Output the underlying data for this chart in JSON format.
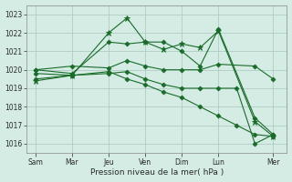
{
  "bg_color": "#d4ece4",
  "grid_color": "#a8c8be",
  "line_color": "#1a6b2a",
  "xlabel": "Pression niveau de la mer( hPa )",
  "ylim": [
    1015.5,
    1023.5
  ],
  "yticks": [
    1016,
    1017,
    1018,
    1019,
    1020,
    1021,
    1022,
    1023
  ],
  "xtick_labels": [
    "Sam",
    "Mar",
    "Jeu",
    "Ven",
    "Dim",
    "Lun",
    "Mer"
  ],
  "xtick_positions": [
    0,
    8,
    16,
    24,
    32,
    40,
    52
  ],
  "xlim": [
    -2,
    55
  ],
  "series": [
    {
      "x": [
        0,
        8,
        16,
        20,
        24,
        28,
        32,
        36,
        40,
        48,
        52
      ],
      "y": [
        1019.4,
        1019.7,
        1022.0,
        1022.8,
        1021.5,
        1021.1,
        1021.4,
        1021.2,
        1022.1,
        1017.2,
        1016.4
      ],
      "marker": "*",
      "markersize": 4.5
    },
    {
      "x": [
        0,
        8,
        16,
        20,
        24,
        28,
        32,
        36,
        40,
        48,
        52
      ],
      "y": [
        1020.0,
        1019.8,
        1021.5,
        1021.4,
        1021.5,
        1021.5,
        1021.0,
        1020.2,
        1022.2,
        1017.4,
        1016.5
      ],
      "marker": "D",
      "markersize": 2.5
    },
    {
      "x": [
        0,
        8,
        16,
        20,
        24,
        28,
        32,
        36,
        40,
        48,
        52
      ],
      "y": [
        1020.0,
        1020.2,
        1020.1,
        1020.5,
        1020.2,
        1020.0,
        1020.0,
        1020.0,
        1020.3,
        1020.2,
        1019.5
      ],
      "marker": "D",
      "markersize": 2.5
    },
    {
      "x": [
        0,
        8,
        16,
        20,
        24,
        28,
        32,
        36,
        40,
        44,
        48,
        52
      ],
      "y": [
        1019.8,
        1019.7,
        1019.8,
        1019.9,
        1019.5,
        1019.2,
        1019.0,
        1019.0,
        1019.0,
        1019.0,
        1016.0,
        1016.5
      ],
      "marker": "D",
      "markersize": 2.5
    },
    {
      "x": [
        0,
        8,
        16,
        20,
        24,
        28,
        32,
        36,
        40,
        44,
        48,
        52
      ],
      "y": [
        1019.5,
        1019.7,
        1019.9,
        1019.5,
        1019.2,
        1018.8,
        1018.5,
        1018.0,
        1017.5,
        1017.0,
        1016.5,
        1016.4
      ],
      "marker": "D",
      "markersize": 2.5
    }
  ]
}
